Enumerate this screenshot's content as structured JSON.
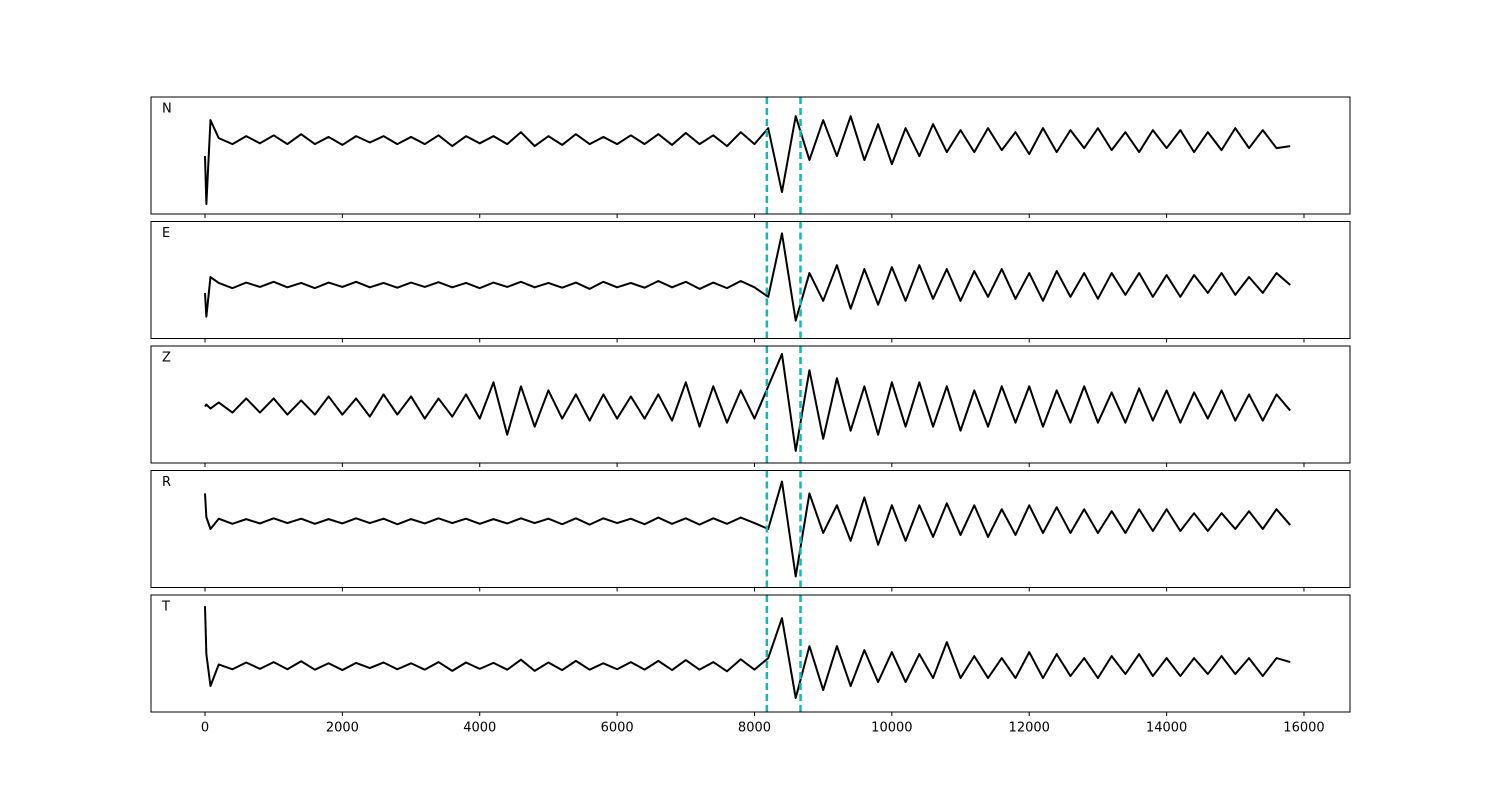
{
  "chart_data": [
    {
      "type": "line",
      "annotation": "N",
      "color": "#000000",
      "x": [
        0,
        20,
        80,
        200,
        400,
        600,
        800,
        1000,
        1200,
        1400,
        1600,
        1800,
        2000,
        2200,
        2400,
        2600,
        2800,
        3000,
        3200,
        3400,
        3600,
        3800,
        4000,
        4200,
        4400,
        4600,
        4800,
        5000,
        5200,
        5400,
        5600,
        5800,
        6000,
        6200,
        6400,
        6600,
        6800,
        7000,
        7200,
        7400,
        7600,
        7800,
        8000,
        8200,
        8400,
        8600,
        8800,
        9000,
        9200,
        9400,
        9600,
        9800,
        10000,
        10200,
        10400,
        10600,
        10800,
        11000,
        11200,
        11400,
        11600,
        11800,
        12000,
        12200,
        12400,
        12600,
        12800,
        13000,
        13200,
        13400,
        13600,
        13800,
        14000,
        14200,
        14400,
        14600,
        14800,
        15000,
        15200,
        15400,
        15600,
        15800
      ],
      "values": [
        -0.4,
        -1.6,
        0.5,
        0.05,
        -0.1,
        0.1,
        -0.08,
        0.12,
        -0.1,
        0.15,
        -0.1,
        0.08,
        -0.12,
        0.1,
        -0.06,
        0.1,
        -0.1,
        0.08,
        -0.1,
        0.12,
        -0.15,
        0.1,
        -0.08,
        0.1,
        -0.1,
        0.2,
        -0.15,
        0.1,
        -0.12,
        0.15,
        -0.1,
        0.08,
        -0.1,
        0.12,
        -0.1,
        0.15,
        -0.12,
        0.18,
        -0.1,
        0.12,
        -0.15,
        0.2,
        -0.1,
        0.3,
        -1.3,
        0.6,
        -0.5,
        0.5,
        -0.4,
        0.6,
        -0.5,
        0.4,
        -0.6,
        0.3,
        -0.4,
        0.4,
        -0.3,
        0.25,
        -0.3,
        0.3,
        -0.25,
        0.2,
        -0.35,
        0.3,
        -0.3,
        0.25,
        -0.2,
        0.3,
        -0.25,
        0.2,
        -0.3,
        0.25,
        -0.2,
        0.25,
        -0.3,
        0.2,
        -0.25,
        0.3,
        -0.2,
        0.25,
        -0.2,
        -0.15
      ],
      "vlines": [
        8180,
        8670
      ],
      "vline_color": "#00bfbf",
      "xlim": [
        -786,
        16670
      ],
      "ylim": [
        -1.85,
        1.08
      ],
      "xticks": [
        0,
        2000,
        4000,
        6000,
        8000,
        10000,
        12000,
        14000,
        16000
      ],
      "show_xtick_labels": false
    },
    {
      "type": "line",
      "annotation": "E",
      "color": "#000000",
      "x": [
        0,
        20,
        80,
        200,
        400,
        600,
        800,
        1000,
        1200,
        1400,
        1600,
        1800,
        2000,
        2200,
        2400,
        2600,
        2800,
        3000,
        3200,
        3400,
        3600,
        3800,
        4000,
        4200,
        4400,
        4600,
        4800,
        5000,
        5200,
        5400,
        5600,
        5800,
        6000,
        6200,
        6400,
        6600,
        6800,
        7000,
        7200,
        7400,
        7600,
        7800,
        8000,
        8200,
        8400,
        8600,
        8800,
        9000,
        9200,
        9400,
        9600,
        9800,
        10000,
        10200,
        10400,
        10600,
        10800,
        11000,
        11200,
        11400,
        11600,
        11800,
        12000,
        12200,
        12400,
        12600,
        12800,
        13000,
        13200,
        13400,
        13600,
        13800,
        14000,
        14200,
        14400,
        14600,
        14800,
        15000,
        15200,
        15400,
        15600,
        15800
      ],
      "values": [
        -0.2,
        -0.8,
        0.2,
        0.05,
        -0.08,
        0.06,
        -0.05,
        0.08,
        -0.06,
        0.05,
        -0.08,
        0.06,
        -0.05,
        0.08,
        -0.06,
        0.05,
        -0.07,
        0.06,
        -0.05,
        0.07,
        -0.06,
        0.05,
        -0.08,
        0.06,
        -0.05,
        0.08,
        -0.06,
        0.05,
        -0.07,
        0.06,
        -0.1,
        0.08,
        -0.06,
        0.05,
        -0.07,
        0.1,
        -0.06,
        0.08,
        -0.1,
        0.06,
        -0.08,
        0.1,
        -0.06,
        -0.3,
        1.3,
        -0.9,
        0.3,
        -0.4,
        0.5,
        -0.6,
        0.4,
        -0.5,
        0.45,
        -0.4,
        0.5,
        -0.35,
        0.4,
        -0.4,
        0.35,
        -0.3,
        0.4,
        -0.35,
        0.3,
        -0.4,
        0.35,
        -0.3,
        0.3,
        -0.35,
        0.3,
        -0.25,
        0.3,
        -0.3,
        0.25,
        -0.3,
        0.25,
        -0.2,
        0.3,
        -0.25,
        0.2,
        -0.2,
        0.3,
        0.0
      ],
      "vlines": [
        8180,
        8670
      ],
      "vline_color": "#00bfbf",
      "xlim": [
        -786,
        16670
      ],
      "ylim": [
        -1.35,
        1.6
      ],
      "xticks": [
        0,
        2000,
        4000,
        6000,
        8000,
        10000,
        12000,
        14000,
        16000
      ],
      "show_xtick_labels": false
    },
    {
      "type": "line",
      "annotation": "Z",
      "color": "#000000",
      "x": [
        0,
        20,
        80,
        200,
        400,
        600,
        800,
        1000,
        1200,
        1400,
        1600,
        1800,
        2000,
        2200,
        2400,
        2600,
        2800,
        3000,
        3200,
        3400,
        3600,
        3800,
        4000,
        4200,
        4400,
        4600,
        4800,
        5000,
        5200,
        5400,
        5600,
        5800,
        6000,
        6200,
        6400,
        6600,
        6800,
        7000,
        7200,
        7400,
        7600,
        7800,
        8000,
        8200,
        8400,
        8600,
        8800,
        9000,
        9200,
        9400,
        9600,
        9800,
        10000,
        10200,
        10400,
        10600,
        10800,
        11000,
        11200,
        11400,
        11600,
        11800,
        12000,
        12200,
        12400,
        12600,
        12800,
        13000,
        13200,
        13400,
        13600,
        13800,
        14000,
        14200,
        14400,
        14600,
        14800,
        15000,
        15200,
        15400,
        15600,
        15800
      ],
      "values": [
        0.0,
        0.05,
        -0.05,
        0.1,
        -0.15,
        0.2,
        -0.15,
        0.2,
        -0.2,
        0.15,
        -0.2,
        0.25,
        -0.2,
        0.2,
        -0.25,
        0.3,
        -0.2,
        0.25,
        -0.3,
        0.2,
        -0.25,
        0.3,
        -0.3,
        0.6,
        -0.7,
        0.5,
        -0.5,
        0.4,
        -0.3,
        0.3,
        -0.35,
        0.3,
        -0.3,
        0.25,
        -0.3,
        0.3,
        -0.35,
        0.6,
        -0.5,
        0.5,
        -0.4,
        0.4,
        -0.3,
        0.5,
        1.3,
        -1.1,
        0.9,
        -0.8,
        0.7,
        -0.6,
        0.5,
        -0.7,
        0.6,
        -0.5,
        0.6,
        -0.5,
        0.5,
        -0.6,
        0.4,
        -0.5,
        0.5,
        -0.4,
        0.5,
        -0.5,
        0.4,
        -0.4,
        0.5,
        -0.4,
        0.35,
        -0.4,
        0.45,
        -0.35,
        0.4,
        -0.4,
        0.35,
        -0.3,
        0.4,
        -0.35,
        0.3,
        -0.35,
        0.3,
        -0.1
      ],
      "vlines": [
        8180,
        8670
      ],
      "vline_color": "#00bfbf",
      "xlim": [
        -786,
        16670
      ],
      "ylim": [
        -1.4,
        1.5
      ],
      "xticks": [
        0,
        2000,
        4000,
        6000,
        8000,
        10000,
        12000,
        14000,
        16000
      ],
      "show_xtick_labels": false
    },
    {
      "type": "line",
      "annotation": "R",
      "color": "#000000",
      "x": [
        0,
        20,
        80,
        200,
        400,
        600,
        800,
        1000,
        1200,
        1400,
        1600,
        1800,
        2000,
        2200,
        2400,
        2600,
        2800,
        3000,
        3200,
        3400,
        3600,
        3800,
        4000,
        4200,
        4400,
        4600,
        4800,
        5000,
        5200,
        5400,
        5600,
        5800,
        6000,
        6200,
        6400,
        6600,
        6800,
        7000,
        7200,
        7400,
        7600,
        7800,
        8000,
        8200,
        8400,
        8600,
        8800,
        9000,
        9200,
        9400,
        9600,
        9800,
        10000,
        10200,
        10400,
        10600,
        10800,
        11000,
        11200,
        11400,
        11600,
        11800,
        12000,
        12200,
        12400,
        12600,
        12800,
        13000,
        13200,
        13400,
        13600,
        13800,
        14000,
        14200,
        14400,
        14600,
        14800,
        15000,
        15200,
        15400,
        15600,
        15800
      ],
      "values": [
        0.7,
        0.1,
        -0.2,
        0.06,
        -0.07,
        0.05,
        -0.06,
        0.07,
        -0.05,
        0.06,
        -0.07,
        0.05,
        -0.06,
        0.07,
        -0.05,
        0.06,
        -0.08,
        0.05,
        -0.06,
        0.07,
        -0.05,
        0.06,
        -0.07,
        0.05,
        -0.06,
        0.07,
        -0.05,
        0.06,
        -0.08,
        0.07,
        -0.09,
        0.07,
        -0.05,
        0.06,
        -0.08,
        0.09,
        -0.07,
        0.07,
        -0.09,
        0.07,
        -0.07,
        0.09,
        -0.05,
        -0.2,
        1.0,
        -1.4,
        0.7,
        -0.3,
        0.4,
        -0.5,
        0.6,
        -0.6,
        0.4,
        -0.5,
        0.4,
        -0.4,
        0.45,
        -0.35,
        0.4,
        -0.4,
        0.3,
        -0.35,
        0.4,
        -0.3,
        0.35,
        -0.3,
        0.3,
        -0.3,
        0.25,
        -0.3,
        0.3,
        -0.25,
        0.3,
        -0.25,
        0.2,
        -0.25,
        0.2,
        -0.2,
        0.25,
        -0.2,
        0.3,
        -0.1
      ],
      "vlines": [
        8180,
        8670
      ],
      "vline_color": "#00bfbf",
      "xlim": [
        -786,
        16670
      ],
      "ylim": [
        -1.68,
        1.28
      ],
      "xticks": [
        0,
        2000,
        4000,
        6000,
        8000,
        10000,
        12000,
        14000,
        16000
      ],
      "show_xtick_labels": false
    },
    {
      "type": "line",
      "annotation": "T",
      "color": "#000000",
      "x": [
        0,
        20,
        80,
        200,
        400,
        600,
        800,
        1000,
        1200,
        1400,
        1600,
        1800,
        2000,
        2200,
        2400,
        2600,
        2800,
        3000,
        3200,
        3400,
        3600,
        3800,
        4000,
        4200,
        4400,
        4600,
        4800,
        5000,
        5200,
        5400,
        5600,
        5800,
        6000,
        6200,
        6400,
        6600,
        6800,
        7000,
        7200,
        7400,
        7600,
        7800,
        8000,
        8200,
        8400,
        8600,
        8800,
        9000,
        9200,
        9400,
        9600,
        9800,
        10000,
        10200,
        10400,
        10600,
        10800,
        11000,
        11200,
        11400,
        11600,
        11800,
        12000,
        12200,
        12400,
        12600,
        12800,
        13000,
        13200,
        13400,
        13600,
        13800,
        14000,
        14200,
        14400,
        14600,
        14800,
        15000,
        15200,
        15400,
        15600,
        15800
      ],
      "values": [
        1.5,
        0.3,
        -0.5,
        0.04,
        -0.08,
        0.09,
        -0.07,
        0.1,
        -0.08,
        0.12,
        -0.09,
        0.07,
        -0.1,
        0.08,
        -0.05,
        0.09,
        -0.08,
        0.07,
        -0.09,
        0.1,
        -0.12,
        0.09,
        -0.07,
        0.08,
        -0.09,
        0.16,
        -0.12,
        0.09,
        -0.1,
        0.13,
        -0.09,
        0.07,
        -0.08,
        0.1,
        -0.09,
        0.13,
        -0.1,
        0.15,
        -0.09,
        0.1,
        -0.13,
        0.17,
        -0.09,
        0.2,
        1.2,
        -0.8,
        0.5,
        -0.6,
        0.5,
        -0.5,
        0.4,
        -0.4,
        0.35,
        -0.4,
        0.3,
        -0.3,
        0.6,
        -0.3,
        0.25,
        -0.3,
        0.2,
        -0.3,
        0.35,
        -0.3,
        0.3,
        -0.25,
        0.2,
        -0.3,
        0.25,
        -0.2,
        0.3,
        -0.25,
        0.2,
        -0.25,
        0.2,
        -0.2,
        0.25,
        -0.2,
        0.2,
        -0.25,
        0.2,
        0.1
      ],
      "vlines": [
        8180,
        8670
      ],
      "vline_color": "#00bfbf",
      "xlim": [
        -786,
        16670
      ],
      "ylim": [
        -1.15,
        1.78
      ],
      "xticks": [
        0,
        2000,
        4000,
        6000,
        8000,
        10000,
        12000,
        14000,
        16000
      ],
      "show_xtick_labels": true
    }
  ]
}
